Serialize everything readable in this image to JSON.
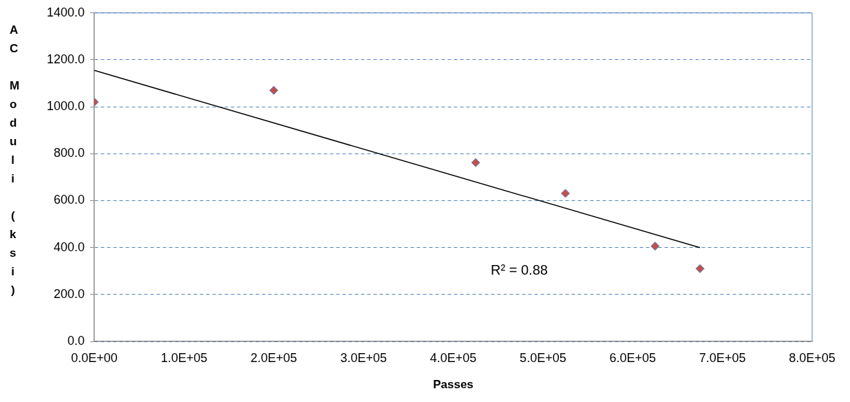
{
  "chart_data": {
    "type": "scatter",
    "xlabel": "Passes",
    "ylabel": "AC Moduli (ksi)",
    "x": [
      0,
      200000,
      425000,
      525000,
      625000,
      675000
    ],
    "series": [
      {
        "color": "#c0504d",
        "values": [
          1020,
          1070,
          762,
          631,
          406,
          310
        ]
      },
      {
        "type": "line",
        "color": "#000000",
        "x": [
          0,
          675000
        ],
        "values": [
          1155,
          400
        ],
        "marker": "none"
      }
    ],
    "xlim": [
      0,
      800000
    ],
    "xticks": [
      {
        "value": 0,
        "label": "0.0E+00"
      },
      {
        "value": 100000,
        "label": "1.0E+05"
      },
      {
        "value": 200000,
        "label": "2.0E+05"
      },
      {
        "value": 300000,
        "label": "3.0E+05"
      },
      {
        "value": 400000,
        "label": "4.0E+05"
      },
      {
        "value": 500000,
        "label": "5.0E+05"
      },
      {
        "value": 600000,
        "label": "6.0E+05"
      },
      {
        "value": 700000,
        "label": "7.0E+05"
      },
      {
        "value": 800000,
        "label": "8.0E+05"
      }
    ],
    "ylim": [
      0,
      1400
    ],
    "yticks": [
      {
        "value": 0,
        "label": "0.0"
      },
      {
        "value": 200,
        "label": "200.0"
      },
      {
        "value": 400,
        "label": "400.0"
      },
      {
        "value": 600,
        "label": "600.0"
      },
      {
        "value": 800,
        "label": "800.0"
      },
      {
        "value": 1000,
        "label": "1000.0"
      },
      {
        "value": 1200,
        "label": "1200.0"
      },
      {
        "value": 1400,
        "label": "1400.0"
      }
    ],
    "annotations": [
      "R² = 0.88"
    ],
    "grid": "y",
    "legend": false,
    "marker": "diamond"
  }
}
